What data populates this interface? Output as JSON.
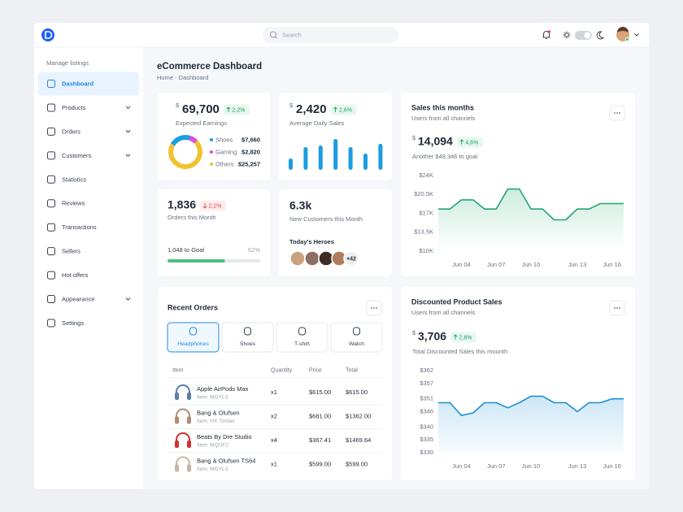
{
  "header": {
    "search_placeholder": "Search"
  },
  "sidebar": {
    "section": "Manage listings",
    "items": [
      {
        "label": "Dashboard",
        "active": true
      },
      {
        "label": "Products",
        "expandable": true
      },
      {
        "label": "Orders",
        "expandable": true
      },
      {
        "label": "Customers",
        "expandable": true
      },
      {
        "label": "Statistics"
      },
      {
        "label": "Reviews"
      },
      {
        "label": "Transactions"
      },
      {
        "label": "Sellers"
      },
      {
        "label": "Hot offers"
      },
      {
        "label": "Appearance",
        "expandable": true
      },
      {
        "label": "Settings"
      }
    ]
  },
  "page": {
    "title": "eCommerce Dashboard",
    "breadcrumb": "Home - Dashboard"
  },
  "cards": {
    "earnings": {
      "currency": "$",
      "value": "69,700",
      "change": "2,2%",
      "trend": "up",
      "label": "Expected Earnings"
    },
    "daily_sales": {
      "currency": "$",
      "value": "2,420",
      "change": "2,6%",
      "trend": "up",
      "label": "Average Daily Sales"
    },
    "orders": {
      "value": "1,836",
      "change": "2,2%",
      "trend": "down",
      "label": "Orders this Month",
      "goal_label": "1,048 to Goal",
      "progress": 62,
      "progress_label": "62%",
      "color": "#4fbf7f"
    },
    "customers": {
      "value": "6.3k",
      "label": "New Customers this Month",
      "heroes_title": "Today's Heroes",
      "more": "+42"
    },
    "sales": {
      "currency": "$",
      "value": "14,094",
      "change": "4,6%",
      "trend": "up",
      "note": "Another $48,346 to goal"
    },
    "discounted": {
      "currency": "$",
      "value": "3,706",
      "change": "2,8%",
      "trend": "up",
      "note": "Total Discounted Sales this mounth"
    }
  },
  "chart_data": [
    {
      "type": "pie",
      "donut": true,
      "categories": [
        "Shoes",
        "Gaming",
        "Others"
      ],
      "values": [
        7660,
        2820,
        25257
      ],
      "value_labels": [
        "$7,660",
        "$2,820",
        "$25,257"
      ],
      "colors": [
        "#1b9de2",
        "#d94fe0",
        "#f2c230"
      ]
    },
    {
      "type": "bar",
      "values": [
        14,
        28,
        30,
        38,
        28,
        20,
        32
      ],
      "ylim": [
        0,
        40
      ],
      "color": "#1b9de2"
    },
    {
      "type": "line",
      "title": "Sales this months",
      "subtitle": "Users from all channels",
      "categories": [
        null,
        null,
        "Jun 04",
        null,
        null,
        "Jun 07",
        null,
        null,
        "Jun 10",
        null,
        null,
        null,
        "Jun 13",
        null,
        null,
        "Jun 16",
        null
      ],
      "series": [
        {
          "color": "#1fa971",
          "values": [
            17800,
            17800,
            19500,
            19500,
            17800,
            17800,
            21500,
            21500,
            17800,
            17800,
            15800,
            15800,
            17800,
            17800,
            18800,
            18800,
            18800
          ]
        }
      ],
      "area": true,
      "ylim": [
        10000,
        24000
      ],
      "yticks": [
        {
          "value": 10000,
          "label": "$10K"
        },
        {
          "value": 13500,
          "label": "$13.5K"
        },
        {
          "value": 17000,
          "label": "$17K"
        },
        {
          "value": 20500,
          "label": "$20.5K"
        },
        {
          "value": 24000,
          "label": "$24K"
        }
      ]
    },
    {
      "type": "line",
      "title": "Discounted Product Sales",
      "subtitle": "Users from all channels",
      "categories": [
        null,
        null,
        "Jun 04",
        null,
        null,
        "Jun 07",
        null,
        null,
        "Jun 10",
        null,
        null,
        null,
        "Jun 13",
        null,
        null,
        "Jun 16",
        null
      ],
      "series": [
        {
          "color": "#1c8fd6",
          "values": [
            349.5,
            349.5,
            344.5,
            345.5,
            349.5,
            349.5,
            347.5,
            349.5,
            352,
            352,
            349.5,
            349.5,
            346,
            349.5,
            349.5,
            351,
            351
          ]
        }
      ],
      "area": true,
      "ylim": [
        330,
        362
      ],
      "yticks": [
        {
          "value": 330,
          "label": "$330"
        },
        {
          "value": 335,
          "label": "$335"
        },
        {
          "value": 340,
          "label": "$340"
        },
        {
          "value": 346,
          "label": "$346"
        },
        {
          "value": 351,
          "label": "$351"
        },
        {
          "value": 357,
          "label": "$357"
        },
        {
          "value": 362,
          "label": "$362"
        }
      ]
    }
  ],
  "recent_orders": {
    "title": "Recent Orders",
    "tabs": [
      {
        "label": "Headphones",
        "active": true
      },
      {
        "label": "Shoes"
      },
      {
        "label": "T-shirt"
      },
      {
        "label": "Watch"
      }
    ],
    "columns": [
      "Item",
      "Quantity",
      "Price",
      "Total"
    ],
    "rows": [
      {
        "name": "Apple AirPods Max",
        "sku": "Item: MGYL3",
        "quantity": "x1",
        "price": "$615.00",
        "total": "$615.00"
      },
      {
        "name": "Bang & Olufsen",
        "sku": "Item: HX Timber",
        "quantity": "x2",
        "price": "$681.00",
        "total": "$1362.00"
      },
      {
        "name": "Beats By Dre Studio",
        "sku": "Item: MQUF2",
        "quantity": "x4",
        "price": "$367.41",
        "total": "$1469.64"
      },
      {
        "name": "Bang & Olufsen TS64",
        "sku": "Item: MGYL3",
        "quantity": "x1",
        "price": "$599.00",
        "total": "$599.00"
      }
    ]
  }
}
